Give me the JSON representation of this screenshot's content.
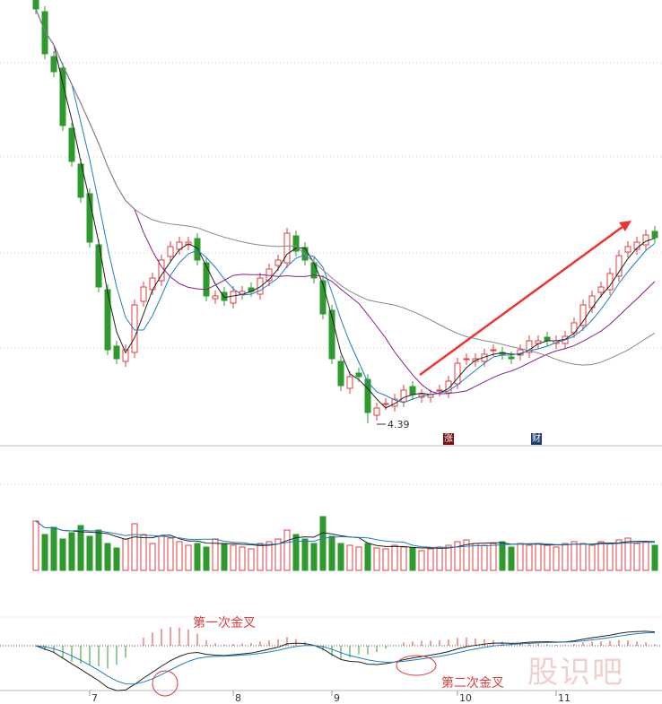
{
  "chart_data": {
    "type": "candlestick",
    "closes": [
      9.01,
      8.51,
      8.31,
      7.71,
      7.31,
      6.91,
      6.41,
      5.91,
      5.21,
      5.11,
      5.21,
      5.71,
      5.91,
      6.01,
      6.21,
      6.36,
      6.41,
      6.41,
      6.21,
      5.81,
      5.81,
      5.76,
      5.86,
      5.86,
      5.86,
      6.01,
      6.11,
      6.21,
      6.51,
      6.31,
      6.21,
      6.01,
      5.61,
      5.11,
      4.81,
      4.91,
      4.91,
      4.51,
      4.56,
      4.61,
      4.66,
      4.76,
      4.71,
      4.71,
      4.71,
      4.76,
      4.86,
      5.06,
      5.11,
      5.11,
      5.16,
      5.21,
      5.16,
      5.11,
      5.21,
      5.31,
      5.31,
      5.31,
      5.31,
      5.36,
      5.51,
      5.71,
      5.81,
      5.91,
      6.06,
      6.26,
      6.36,
      6.41,
      6.49,
      6.46
    ],
    "volumes": [
      55,
      40,
      48,
      35,
      42,
      50,
      38,
      45,
      30,
      25,
      35,
      52,
      40,
      30,
      38,
      36,
      32,
      28,
      30,
      26,
      35,
      30,
      28,
      26,
      24,
      30,
      32,
      35,
      45,
      40,
      35,
      30,
      60,
      38,
      30,
      28,
      26,
      30,
      25,
      24,
      28,
      26,
      25,
      22,
      24,
      26,
      28,
      32,
      34,
      30,
      28,
      30,
      32,
      26,
      30,
      28,
      30,
      28,
      26,
      30,
      32,
      30,
      28,
      32,
      30,
      34,
      36,
      30,
      32,
      28
    ],
    "x_tick_labels": [
      {
        "index": 6,
        "label": "7"
      },
      {
        "index": 22,
        "label": "8"
      },
      {
        "index": 33,
        "label": "9"
      },
      {
        "index": 47,
        "label": "10"
      },
      {
        "index": 58,
        "label": "11"
      }
    ],
    "low_label": "4.39",
    "grid": true,
    "colors": {
      "up": "#e03c3c",
      "down": "#2e9a2e",
      "ma5": "#222222",
      "ma10": "#1f7fbf",
      "ma20": "#8a1f8a",
      "ma60": "#888888",
      "dif": "#222222",
      "dea": "#1f7fbf"
    }
  },
  "badges": {
    "zhang": "涨",
    "cai": "财"
  },
  "annotations": {
    "first_cross": "第一次金叉",
    "second_cross": "第二次金叉"
  },
  "watermark": "股识吧"
}
